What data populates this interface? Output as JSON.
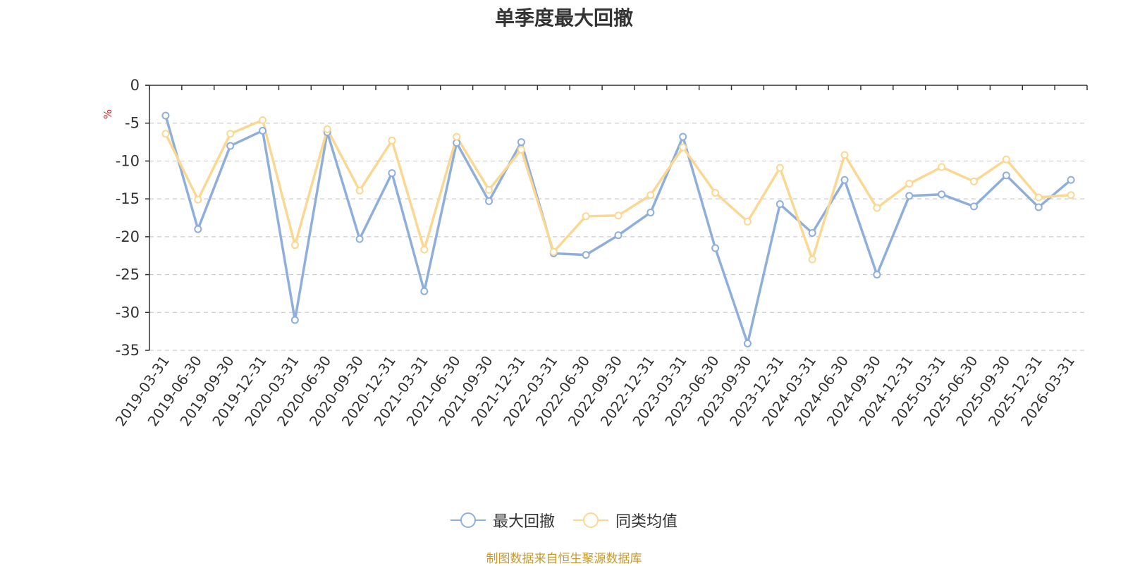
{
  "chart_data": {
    "type": "line",
    "title": "单季度最大回撤",
    "ylabel": "%",
    "xlabel": "",
    "ylim": [
      -35,
      0
    ],
    "yticks": [
      0,
      -5,
      -10,
      -15,
      -20,
      -25,
      -30,
      -35
    ],
    "grid": true,
    "legend_position": "bottom",
    "categories": [
      "2019-03-31",
      "2019-06-30",
      "2019-09-30",
      "2019-12-31",
      "2020-03-31",
      "2020-06-30",
      "2020-09-30",
      "2020-12-31",
      "2021-03-31",
      "2021-06-30",
      "2021-09-30",
      "2021-12-31",
      "2022-03-31",
      "2022-06-30",
      "2022-09-30",
      "2022-12-31",
      "2023-03-31",
      "2023-06-30",
      "2023-09-30",
      "2023-12-31",
      "2024-03-31",
      "2024-06-30",
      "2024-09-30",
      "2024-12-31",
      "2025-03-31",
      "2025-06-30",
      "2025-09-30",
      "2025-12-31",
      "2026-03-31"
    ],
    "series": [
      {
        "name": "最大回撤",
        "color": "#8eafdb",
        "values": [
          -4.0,
          -19.0,
          -8.0,
          -6.0,
          -31.0,
          -6.2,
          -20.3,
          -11.6,
          -27.2,
          -7.6,
          -15.3,
          -7.5,
          -22.2,
          -22.4,
          -19.8,
          -16.8,
          -6.8,
          -21.5,
          -34.1,
          -15.7,
          -19.5,
          -12.5,
          -25.0,
          -14.6,
          -14.4,
          -16.0,
          -11.9,
          -16.1,
          -12.5
        ]
      },
      {
        "name": "同类均值",
        "color": "#fbd892",
        "values": [
          -6.4,
          -15.1,
          -6.4,
          -4.6,
          -21.1,
          -5.8,
          -13.9,
          -7.3,
          -21.7,
          -6.8,
          -13.8,
          -8.5,
          -22.0,
          -17.3,
          -17.2,
          -14.5,
          -8.2,
          -14.2,
          -18.0,
          -10.9,
          -23.0,
          -9.2,
          -16.2,
          -13.0,
          -10.8,
          -12.7,
          -9.8,
          -14.8,
          -14.5
        ]
      }
    ]
  },
  "footer": {
    "source_text": "制图数据来自恒生聚源数据库"
  }
}
